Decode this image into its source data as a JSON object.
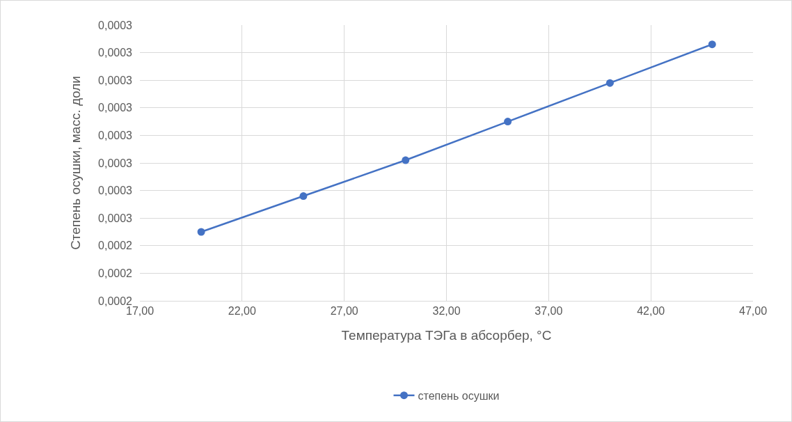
{
  "chart_data": {
    "type": "line",
    "xlabel": "Температура ТЭГа в абсорбер, °C",
    "ylabel": "Степень осушки, масс. доли",
    "x": [
      20,
      25,
      30,
      35,
      40,
      45
    ],
    "series": [
      {
        "name": "степень осушки",
        "color": "#4472c4",
        "values": [
          0.000245,
          0.000258,
          0.000271,
          0.000285,
          0.000299,
          0.000313
        ]
      }
    ],
    "xlim": [
      17,
      47
    ],
    "xticks": [
      {
        "value": 17,
        "label": "17,00"
      },
      {
        "value": 22,
        "label": "22,00"
      },
      {
        "value": 27,
        "label": "27,00"
      },
      {
        "value": 32,
        "label": "32,00"
      },
      {
        "value": 37,
        "label": "37,00"
      },
      {
        "value": 42,
        "label": "42,00"
      },
      {
        "value": 47,
        "label": "47,00"
      }
    ],
    "ylim": [
      0.00022,
      0.00032
    ],
    "yticks": [
      {
        "value": 0.00022,
        "label": "0,0002"
      },
      {
        "value": 0.00023,
        "label": "0,0002"
      },
      {
        "value": 0.00024,
        "label": "0,0002"
      },
      {
        "value": 0.00025,
        "label": "0,0003"
      },
      {
        "value": 0.00026,
        "label": "0,0003"
      },
      {
        "value": 0.00027,
        "label": "0,0003"
      },
      {
        "value": 0.00028,
        "label": "0,0003"
      },
      {
        "value": 0.00029,
        "label": "0,0003"
      },
      {
        "value": 0.0003,
        "label": "0,0003"
      },
      {
        "value": 0.00031,
        "label": "0,0003"
      },
      {
        "value": 0.00032,
        "label": "0,0003"
      }
    ],
    "grid": true,
    "legend": "bottom",
    "marker": "circle",
    "line_style": "solid"
  }
}
